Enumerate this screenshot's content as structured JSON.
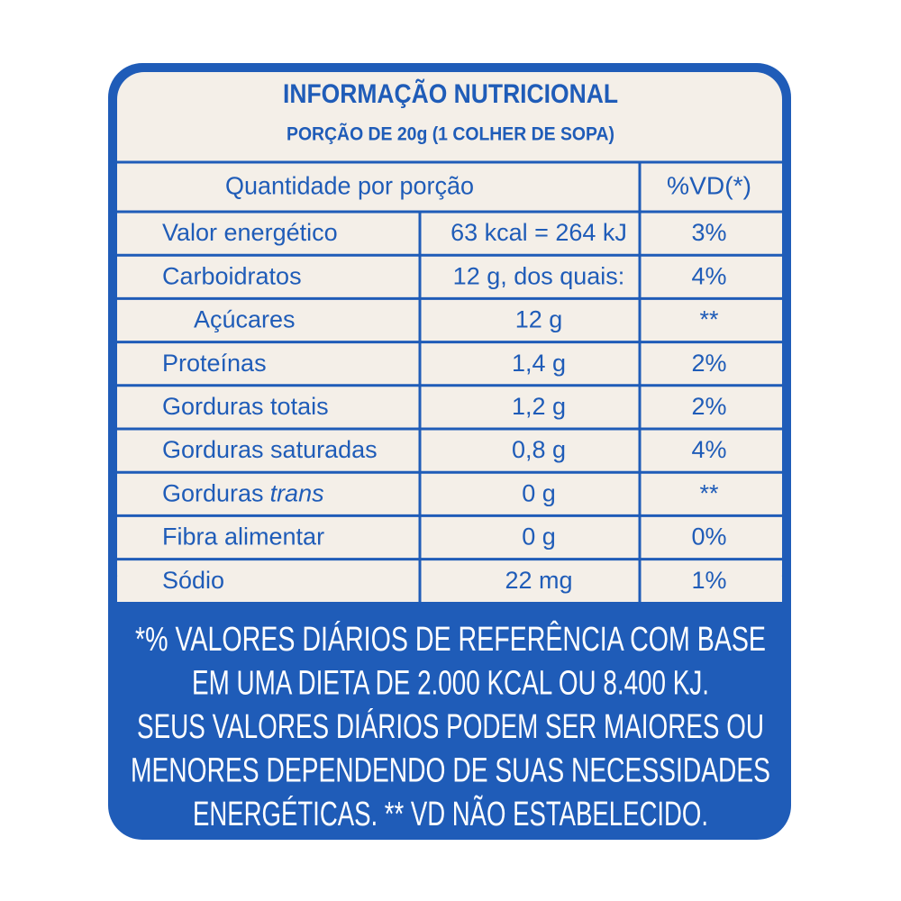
{
  "header": {
    "title": "INFORMAÇÃO NUTRICIONAL",
    "subtitle": "PORÇÃO DE 20g (1 COLHER DE SOPA)"
  },
  "table": {
    "columns": [
      "Quantidade por porção",
      "%VD(*)"
    ],
    "rows": [
      {
        "label": "Valor energético",
        "amount": "63 kcal = 264 kJ",
        "vd": "3%"
      },
      {
        "label": "Carboidratos",
        "amount": "12 g, dos quais:",
        "vd": "4%"
      },
      {
        "label": "Açúcares",
        "amount": "12 g",
        "vd": "**",
        "indent": true
      },
      {
        "label": "Proteínas",
        "amount": "1,4 g",
        "vd": "2%"
      },
      {
        "label": "Gorduras totais",
        "amount": "1,2 g",
        "vd": "2%"
      },
      {
        "label": "Gorduras saturadas",
        "amount": "0,8 g",
        "vd": "4%"
      },
      {
        "label": "Gorduras",
        "label_italic": "trans",
        "amount": "0 g",
        "vd": "**"
      },
      {
        "label": "Fibra alimentar",
        "amount": "0 g",
        "vd": "0%"
      },
      {
        "label": "Sódio",
        "amount": "22 mg",
        "vd": "1%"
      }
    ]
  },
  "footnote": [
    "*% VALORES DIÁRIOS DE REFERÊNCIA COM BASE",
    "EM UMA DIETA DE 2.000 KCAL OU 8.400 KJ.",
    "SEUS VALORES DIÁRIOS PODEM SER MAIORES OU",
    "MENORES DEPENDENDO DE SUAS NECESSIDADES",
    "ENERGÉTICAS. ** VD NÃO ESTABELECIDO."
  ]
}
